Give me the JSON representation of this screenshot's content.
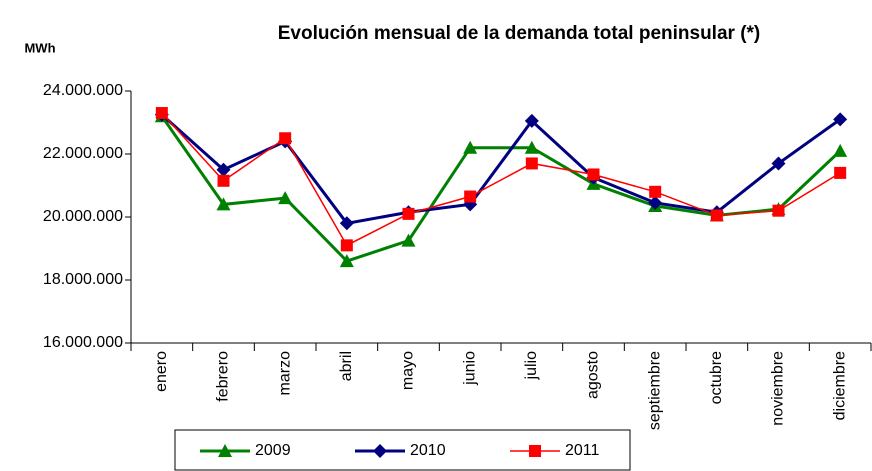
{
  "chart_data": {
    "type": "line",
    "title": "Evolución mensual de la demanda total peninsular (*)",
    "y_label": "MWh",
    "categories": [
      "enero",
      "febrero",
      "marzo",
      "abril",
      "mayo",
      "junio",
      "julio",
      "agosto",
      "septiembre",
      "octubre",
      "noviembre",
      "diciembre"
    ],
    "series": [
      {
        "name": "2009",
        "color": "#008000",
        "values": [
          23200000,
          20400000,
          20600000,
          18600000,
          19250000,
          22200000,
          22200000,
          21050000,
          20350000,
          20050000,
          20250000,
          22100000
        ]
      },
      {
        "name": "2010",
        "color": "#000080",
        "values": [
          23250000,
          21500000,
          22400000,
          19800000,
          20150000,
          20400000,
          23050000,
          21250000,
          20450000,
          20150000,
          21700000,
          23100000
        ]
      },
      {
        "name": "2011",
        "color": "#ff0000",
        "values": [
          23300000,
          21150000,
          22500000,
          19100000,
          20100000,
          20650000,
          21700000,
          21350000,
          20800000,
          20050000,
          20200000,
          21400000
        ]
      }
    ],
    "ylim": [
      16000000,
      24000000
    ],
    "yticks": [
      {
        "value": 16000000,
        "label": "16.000.000"
      },
      {
        "value": 18000000,
        "label": "18.000.000"
      },
      {
        "value": 20000000,
        "label": "20.000.000"
      },
      {
        "value": 22000000,
        "label": "22.000.000"
      },
      {
        "value": 24000000,
        "label": "24.000.000"
      }
    ],
    "grid": false,
    "legend": "bottom"
  }
}
